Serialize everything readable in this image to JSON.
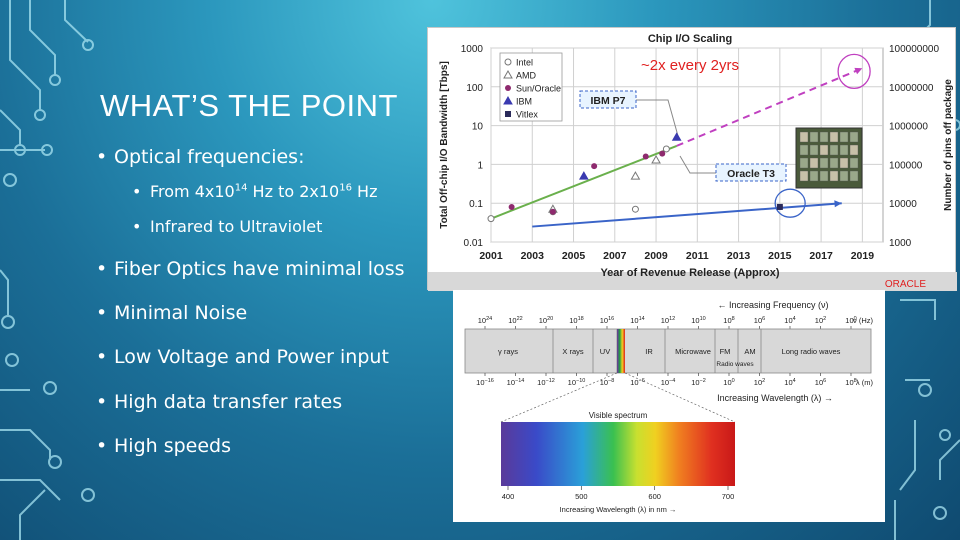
{
  "slide": {
    "title": "WHAT’S THE POINT",
    "bullets": [
      {
        "text": "Optical frequencies:",
        "sub": [
          {
            "prefix": "From 4x",
            "base1": "10",
            "exp1": "14",
            "mid": " Hz to 2x",
            "base2": "10",
            "exp2": "16",
            "suffix": " Hz"
          },
          {
            "text": "Infrared to Ultraviolet"
          }
        ]
      },
      {
        "text": "Fiber Optics have minimal loss"
      },
      {
        "text": "Minimal Noise"
      },
      {
        "text": "Low Voltage and Power input"
      },
      {
        "text": "High data transfer rates"
      },
      {
        "text": "High speeds"
      }
    ],
    "colors": {
      "bg_top": "#4fc3dc",
      "bg_bottom": "#0f4a70",
      "text": "#ffffff"
    }
  },
  "chart_data": [
    {
      "type": "scatter",
      "title": "Chip I/O Scaling",
      "annotation": "~2x every 2yrs",
      "xlabel": "Year of Revenue Release  (Approx)",
      "ylabel": "Total Off-chip I/O Bandwidth [Tbps]",
      "y2label": "Number of pins off package",
      "x_ticks": [
        "2001",
        "2003",
        "2005",
        "2007",
        "2009",
        "2011",
        "2013",
        "2015",
        "2017",
        "2019"
      ],
      "y_ticks": [
        "1000",
        "100",
        "10",
        "1",
        "0.1",
        "0.01"
      ],
      "y2_ticks": [
        "100000000",
        "10000000",
        "1000000",
        "100000",
        "10000",
        "1000"
      ],
      "xlim": [
        2001,
        2020
      ],
      "ylim": [
        0.01,
        1000
      ],
      "yscale": "log",
      "grid": true,
      "legend": {
        "position": "top-left",
        "entries": [
          "Intel",
          "AMD",
          "Sun/Oracle",
          "IBM",
          "Vitlex"
        ]
      },
      "labels": [
        "IBM P7",
        "Oracle T3"
      ],
      "footer_logo": "ORACLE",
      "series": [
        {
          "name": "Intel",
          "marker": "open-circle",
          "color": "#777777",
          "x": [
            2001,
            2004,
            2008,
            2009.5
          ],
          "y": [
            0.04,
            0.06,
            0.07,
            2.5
          ]
        },
        {
          "name": "AMD",
          "marker": "open-triangle",
          "color": "#777777",
          "x": [
            2004,
            2008,
            2009
          ],
          "y": [
            0.07,
            0.5,
            1.3
          ]
        },
        {
          "name": "Sun/Oracle",
          "marker": "filled-circle",
          "color": "#8e2a6e",
          "x": [
            2002,
            2004,
            2006,
            2008.5,
            2009.3,
            2015
          ],
          "y": [
            0.08,
            0.06,
            0.9,
            1.6,
            1.9,
            0.08
          ]
        },
        {
          "name": "IBM",
          "marker": "filled-triangle",
          "color": "#3a3ab0",
          "x": [
            2005.5,
            2010
          ],
          "y": [
            0.5,
            5
          ]
        },
        {
          "name": "Vitlex",
          "marker": "filled-square",
          "color": "#2a2a5a",
          "x": [
            2015
          ],
          "y": [
            0.08
          ]
        },
        {
          "name": "green trend",
          "style": "line",
          "color": "#6ab04c",
          "x": [
            2001,
            2010
          ],
          "y": [
            0.04,
            3
          ]
        },
        {
          "name": "pink projection",
          "style": "dashed-arrow",
          "color": "#c040c0",
          "x": [
            2010,
            2019
          ],
          "y": [
            3,
            300
          ]
        },
        {
          "name": "blue trend",
          "style": "arrow",
          "color": "#3a64c8",
          "x": [
            2003,
            2018
          ],
          "y": [
            0.025,
            0.1
          ]
        }
      ]
    },
    {
      "type": "diagram",
      "top_label": "← Increasing Frequency (ν)",
      "bottom_label": "Increasing Wavelength (λ) →",
      "freq_unit": "ν (Hz)",
      "wave_unit": "λ (m)",
      "freq_ticks": [
        {
          "b": "10",
          "e": "24"
        },
        {
          "b": "10",
          "e": "22"
        },
        {
          "b": "10",
          "e": "20"
        },
        {
          "b": "10",
          "e": "18"
        },
        {
          "b": "10",
          "e": "16"
        },
        {
          "b": "10",
          "e": "14"
        },
        {
          "b": "10",
          "e": "12"
        },
        {
          "b": "10",
          "e": "10"
        },
        {
          "b": "10",
          "e": "8"
        },
        {
          "b": "10",
          "e": "6"
        },
        {
          "b": "10",
          "e": "4"
        },
        {
          "b": "10",
          "e": "2"
        },
        {
          "b": "10",
          "e": "0"
        }
      ],
      "wave_ticks": [
        {
          "b": "10",
          "e": "−16"
        },
        {
          "b": "10",
          "e": "−14"
        },
        {
          "b": "10",
          "e": "−12"
        },
        {
          "b": "10",
          "e": "−10"
        },
        {
          "b": "10",
          "e": "−8"
        },
        {
          "b": "10",
          "e": "−6"
        },
        {
          "b": "10",
          "e": "−4"
        },
        {
          "b": "10",
          "e": "−2"
        },
        {
          "b": "10",
          "e": "0"
        },
        {
          "b": "10",
          "e": "2"
        },
        {
          "b": "10",
          "e": "4"
        },
        {
          "b": "10",
          "e": "6"
        },
        {
          "b": "10",
          "e": "8"
        }
      ],
      "bands": [
        "γ rays",
        "X rays",
        "UV",
        "IR",
        "Microwave",
        "FM",
        "AM",
        "Long radio waves",
        "Radio waves"
      ],
      "visible_title": "Visible spectrum",
      "visible_ticks": [
        "400",
        "500",
        "600",
        "700"
      ],
      "visible_axis_label": "Increasing Wavelength (λ) in nm →"
    }
  ]
}
